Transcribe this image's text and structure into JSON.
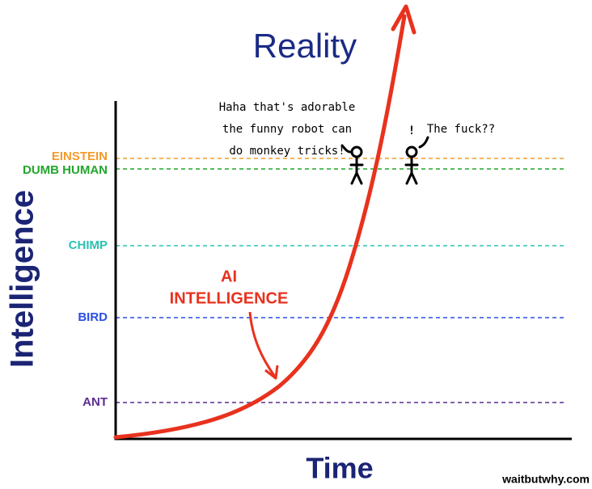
{
  "title": "Reality",
  "y_axis_label": "Intelligence",
  "x_axis_label": "Time",
  "levels": [
    {
      "label": "EINSTEIN",
      "color": "#f29b2c"
    },
    {
      "label": "DUMB HUMAN",
      "color": "#22a62c"
    },
    {
      "label": "CHIMP",
      "color": "#2cc2b2"
    },
    {
      "label": "BIRD",
      "color": "#2a4fe2"
    },
    {
      "label": "ANT",
      "color": "#5b2d92"
    }
  ],
  "curve_label": [
    "AI",
    "INTELLIGENCE"
  ],
  "speech": {
    "human": [
      "Haha that's adorable",
      "the funny robot can",
      "do monkey tricks!"
    ],
    "exclaim": "!",
    "reaction": "The fuck??"
  },
  "credit": "waitbutwhy.com"
}
